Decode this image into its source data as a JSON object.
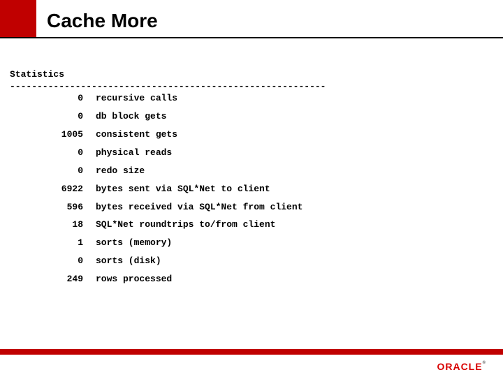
{
  "colors": {
    "accent": "#c00000",
    "text": "#000000",
    "background": "#ffffff",
    "logo": "#d80000"
  },
  "title": "Cache More",
  "stats_header": "Statistics",
  "dashline": "----------------------------------------------------------",
  "rows": [
    {
      "value": "0",
      "label": "recursive calls"
    },
    {
      "value": "0",
      "label": "db block gets"
    },
    {
      "value": "1005",
      "label": "consistent gets"
    },
    {
      "value": "0",
      "label": "physical reads"
    },
    {
      "value": "0",
      "label": "redo size"
    },
    {
      "value": "6922",
      "label": "bytes sent via SQL*Net to client"
    },
    {
      "value": "596",
      "label": "bytes received via SQL*Net from client"
    },
    {
      "value": "18",
      "label": "SQL*Net roundtrips to/from client"
    },
    {
      "value": "1",
      "label": "sorts (memory)"
    },
    {
      "value": "0",
      "label": "sorts (disk)"
    },
    {
      "value": "249",
      "label": "rows processed"
    }
  ],
  "logo_text": "ORACLE",
  "font": {
    "title_size_pt": 28,
    "body_size_pt": 13,
    "body_family": "Courier New",
    "body_weight": "bold"
  }
}
